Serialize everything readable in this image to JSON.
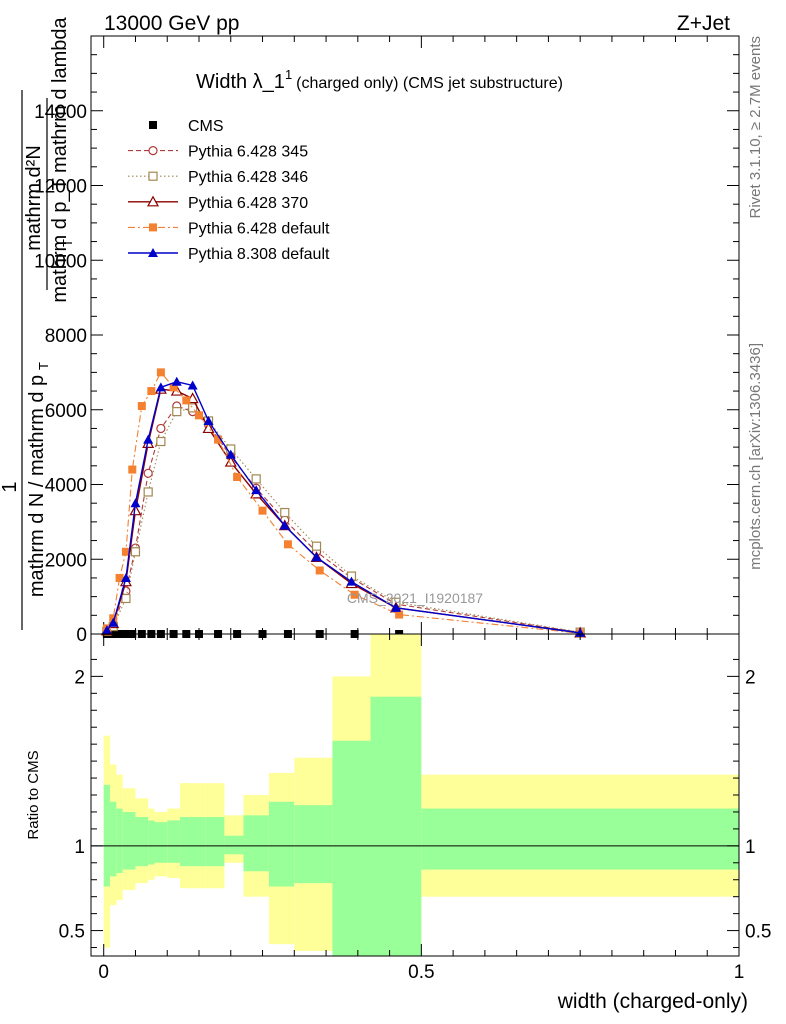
{
  "header": {
    "left": "13000 GeV pp",
    "right": "Z+Jet",
    "side_top": "Rivet 3.1.10, ≥ 2.7M events",
    "side_bottom": "mcplots.cern.ch [arXiv:1306.3436]",
    "watermark": "CMS_2021_I1920187"
  },
  "chart_data": [
    {
      "type": "line",
      "title_main": "Width λ_1",
      "title_sup": "1",
      "title_rest": "(charged only) (CMS jet substructure)",
      "ylabel_numer": "mathrm d²N",
      "ylabel_denom": "mathrm d p_T mathrm d lambda",
      "ylabel_sub": "T",
      "ylabel_left_numer": "1",
      "ylabel_left_denom": "mathrm d N / mathrm d p",
      "ylabel_left_sub": "T",
      "xlim": [
        -0.02,
        1.0
      ],
      "ylim": [
        0,
        16000
      ],
      "yticks": [
        {
          "v": 0,
          "label": "0"
        },
        {
          "v": 2000,
          "label": "2000"
        },
        {
          "v": 4000,
          "label": "4000"
        },
        {
          "v": 6000,
          "label": "6000"
        },
        {
          "v": 8000,
          "label": "8000"
        },
        {
          "v": 10000,
          "label": "10000"
        },
        {
          "v": 12000,
          "label": "12000"
        },
        {
          "v": 14000,
          "label": "14000"
        }
      ],
      "legend_position": "top-left",
      "series": [
        {
          "name": "CMS",
          "color": "#000000",
          "marker": "square-filled",
          "line": "none",
          "x": [
            0.005,
            0.015,
            0.025,
            0.035,
            0.045,
            0.06,
            0.075,
            0.09,
            0.11,
            0.13,
            0.15,
            0.18,
            0.21,
            0.25,
            0.29,
            0.34,
            0.395,
            0.465
          ],
          "y": [
            0,
            0,
            0,
            0,
            0,
            0,
            0,
            0,
            0,
            0,
            0,
            0,
            0,
            0,
            0,
            0,
            0,
            0
          ]
        },
        {
          "name": "Pythia 6.428 345",
          "color": "#b03a3a",
          "marker": "circle-open",
          "line": "dashed",
          "x": [
            0.005,
            0.015,
            0.035,
            0.05,
            0.07,
            0.09,
            0.115,
            0.14,
            0.165,
            0.2,
            0.24,
            0.285,
            0.335,
            0.39,
            0.46,
            0.75
          ],
          "y": [
            80,
            250,
            1150,
            2300,
            4300,
            5500,
            6100,
            5950,
            5600,
            4750,
            3900,
            3050,
            2200,
            1500,
            800,
            40
          ]
        },
        {
          "name": "Pythia 6.428 346",
          "color": "#a08850",
          "marker": "square-open",
          "line": "dotted",
          "x": [
            0.005,
            0.015,
            0.035,
            0.05,
            0.07,
            0.09,
            0.115,
            0.14,
            0.165,
            0.2,
            0.24,
            0.285,
            0.335,
            0.39,
            0.46,
            0.75
          ],
          "y": [
            70,
            200,
            950,
            2200,
            3800,
            5150,
            5950,
            6050,
            5700,
            4950,
            4150,
            3250,
            2350,
            1550,
            850,
            50
          ]
        },
        {
          "name": "Pythia 6.428 370",
          "color": "#8b0000",
          "marker": "triangle-open",
          "line": "solid",
          "x": [
            0.005,
            0.015,
            0.035,
            0.05,
            0.07,
            0.09,
            0.115,
            0.14,
            0.165,
            0.2,
            0.24,
            0.285,
            0.335,
            0.39,
            0.46,
            0.75
          ],
          "y": [
            90,
            280,
            1400,
            3300,
            5100,
            6550,
            6500,
            6300,
            5500,
            4600,
            3750,
            2900,
            2050,
            1350,
            700,
            30
          ]
        },
        {
          "name": "Pythia 6.428 default",
          "color": "#f58030",
          "marker": "square-filled",
          "line": "dashdot",
          "x": [
            0.005,
            0.015,
            0.025,
            0.035,
            0.045,
            0.06,
            0.075,
            0.09,
            0.11,
            0.13,
            0.15,
            0.18,
            0.21,
            0.25,
            0.29,
            0.34,
            0.395,
            0.465,
            0.75
          ],
          "y": [
            150,
            420,
            1500,
            2200,
            4400,
            6100,
            6500,
            7000,
            6600,
            6250,
            5850,
            5200,
            4200,
            3300,
            2400,
            1700,
            1050,
            520,
            20
          ]
        },
        {
          "name": "Pythia 8.308 default",
          "color": "#0000cc",
          "marker": "triangle-filled",
          "line": "solid",
          "x": [
            0.005,
            0.015,
            0.035,
            0.05,
            0.07,
            0.09,
            0.115,
            0.14,
            0.165,
            0.2,
            0.24,
            0.285,
            0.335,
            0.39,
            0.46,
            0.75
          ],
          "y": [
            100,
            300,
            1500,
            3500,
            5200,
            6600,
            6750,
            6650,
            5700,
            4800,
            3850,
            2900,
            2050,
            1400,
            700,
            30
          ]
        }
      ]
    },
    {
      "type": "area",
      "ylabel": "Ratio to CMS",
      "xlabel": "width (charged-only)",
      "xlim": [
        -0.02,
        1.0
      ],
      "ylim": [
        0.35,
        2.25
      ],
      "yticks": [
        {
          "v": 0.5,
          "label": "0.5"
        },
        {
          "v": 1,
          "label": "1"
        },
        {
          "v": 2,
          "label": "2"
        }
      ],
      "xticks": [
        {
          "v": 0,
          "label": "0"
        },
        {
          "v": 0.5,
          "label": "0.5"
        },
        {
          "v": 1,
          "label": "1"
        }
      ],
      "bins": [
        {
          "x0": 0.0,
          "x1": 0.01,
          "g": [
            0.76,
            1.36
          ],
          "y": [
            0.4,
            1.65
          ]
        },
        {
          "x0": 0.01,
          "x1": 0.02,
          "g": [
            0.82,
            1.26
          ],
          "y": [
            0.65,
            1.48
          ]
        },
        {
          "x0": 0.02,
          "x1": 0.03,
          "g": [
            0.84,
            1.22
          ],
          "y": [
            0.68,
            1.42
          ]
        },
        {
          "x0": 0.03,
          "x1": 0.05,
          "g": [
            0.86,
            1.2
          ],
          "y": [
            0.74,
            1.34
          ]
        },
        {
          "x0": 0.05,
          "x1": 0.07,
          "g": [
            0.88,
            1.17
          ],
          "y": [
            0.78,
            1.28
          ]
        },
        {
          "x0": 0.07,
          "x1": 0.08,
          "g": [
            0.89,
            1.15
          ],
          "y": [
            0.8,
            1.22
          ]
        },
        {
          "x0": 0.08,
          "x1": 0.1,
          "g": [
            0.9,
            1.14
          ],
          "y": [
            0.82,
            1.2
          ]
        },
        {
          "x0": 0.1,
          "x1": 0.12,
          "g": [
            0.9,
            1.15
          ],
          "y": [
            0.81,
            1.22
          ]
        },
        {
          "x0": 0.12,
          "x1": 0.16,
          "g": [
            0.88,
            1.17
          ],
          "y": [
            0.75,
            1.37
          ]
        },
        {
          "x0": 0.16,
          "x1": 0.19,
          "g": [
            0.88,
            1.17
          ],
          "y": [
            0.75,
            1.37
          ]
        },
        {
          "x0": 0.19,
          "x1": 0.22,
          "g": [
            0.95,
            1.06
          ],
          "y": [
            0.9,
            1.18
          ]
        },
        {
          "x0": 0.22,
          "x1": 0.26,
          "g": [
            0.85,
            1.18
          ],
          "y": [
            0.7,
            1.3
          ]
        },
        {
          "x0": 0.26,
          "x1": 0.3,
          "g": [
            0.76,
            1.26
          ],
          "y": [
            0.42,
            1.43
          ]
        },
        {
          "x0": 0.3,
          "x1": 0.36,
          "g": [
            0.78,
            1.24
          ],
          "y": [
            0.38,
            1.52
          ]
        },
        {
          "x0": 0.36,
          "x1": 0.42,
          "g": [
            0.35,
            1.62
          ],
          "y": [
            0.35,
            2.0
          ]
        },
        {
          "x0": 0.42,
          "x1": 0.5,
          "g": [
            0.35,
            1.88
          ],
          "y": [
            0.35,
            2.25
          ]
        },
        {
          "x0": 0.5,
          "x1": 1.0,
          "g": [
            0.86,
            1.22
          ],
          "y": [
            0.7,
            1.42
          ]
        }
      ]
    }
  ]
}
